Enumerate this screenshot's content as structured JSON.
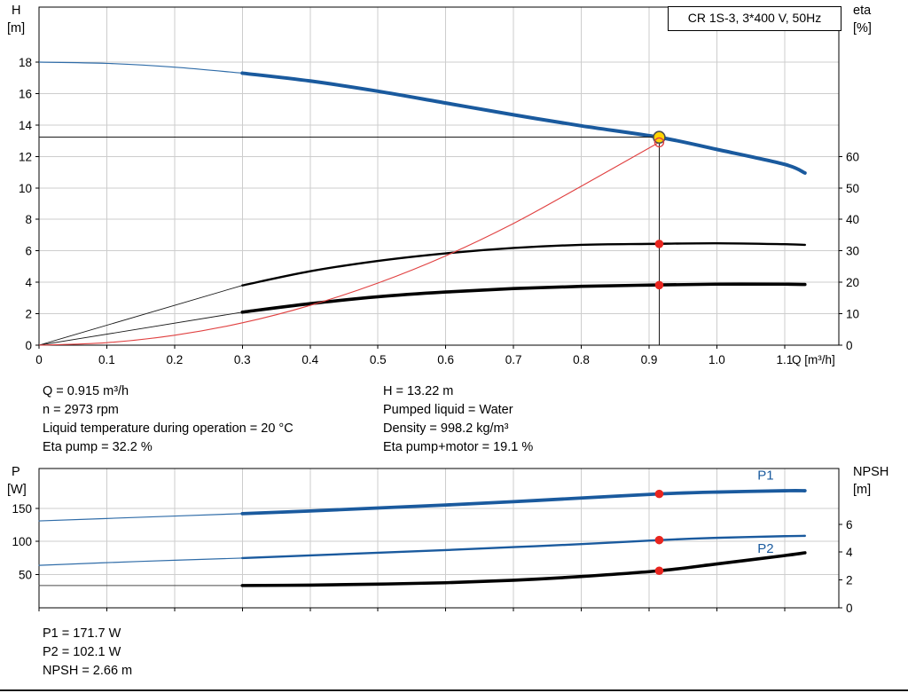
{
  "title_box": "CR 1S-3, 3*400 V, 50Hz",
  "info_top": {
    "left": [
      "Q = 0.915 m³/h",
      "n = 2973 rpm",
      "Liquid temperature during operation = 20 °C",
      "Eta pump = 32.2 %"
    ],
    "right": [
      "H = 13.22 m",
      "Pumped liquid = Water",
      "Density = 998.2 kg/m³",
      "Eta pump+motor = 19.1 %"
    ]
  },
  "info_bottom": [
    "P1 = 171.7 W",
    "P2 = 102.1 W",
    "NPSH = 2.66 m"
  ],
  "colors": {
    "curve_blue": "#1a5a9e",
    "curve_black": "#000000",
    "marker_red": "#e8251f",
    "duty_yellow": "#ffd400",
    "grid": "#cdcdcd"
  },
  "chart_data": [
    {
      "type": "line",
      "name": "qh-eta-performance",
      "x_axis": {
        "label": "Q [m³/h]",
        "min": 0,
        "max": 1.18,
        "ticks": [
          0,
          0.1,
          0.2,
          0.3,
          0.4,
          0.5,
          0.6,
          0.7,
          0.8,
          0.9,
          1.0,
          1.1
        ],
        "tick_labels": [
          "0",
          "0.1",
          "0.2",
          "0.3",
          "0.4",
          "0.5",
          "0.6",
          "0.7",
          "0.8",
          "0.9",
          "1.0",
          "1.1"
        ]
      },
      "y_left": {
        "label_lines": [
          "H",
          "[m]"
        ],
        "min": 0,
        "max": 21.5,
        "ticks": [
          0,
          2,
          4,
          6,
          8,
          10,
          12,
          14,
          16,
          18
        ]
      },
      "y_right": {
        "label_lines": [
          "eta",
          "[%]"
        ],
        "min": 0,
        "max": 107.5,
        "ticks": [
          0,
          10,
          20,
          30,
          40,
          50,
          60
        ]
      },
      "grid": true,
      "series": [
        {
          "name": "head-min-flow",
          "axis": "left",
          "color": "#2f6ca8",
          "width": 1.2,
          "points": [
            [
              0,
              18.0
            ],
            [
              0.1,
              17.92
            ],
            [
              0.2,
              17.68
            ],
            [
              0.3,
              17.3
            ]
          ]
        },
        {
          "name": "head",
          "axis": "left",
          "color": "#1a5a9e",
          "width": 4,
          "points": [
            [
              0.3,
              17.3
            ],
            [
              0.4,
              16.8
            ],
            [
              0.5,
              16.15
            ],
            [
              0.6,
              15.4
            ],
            [
              0.7,
              14.65
            ],
            [
              0.8,
              13.95
            ],
            [
              0.915,
              13.22
            ],
            [
              1.0,
              12.45
            ],
            [
              1.1,
              11.5
            ],
            [
              1.13,
              10.95
            ]
          ]
        },
        {
          "name": "eta-pump-min-flow",
          "axis": "right",
          "color": "#1a1a1a",
          "width": 0.9,
          "points": [
            [
              0,
              0
            ],
            [
              0.3,
              19.0
            ]
          ]
        },
        {
          "name": "eta-pump",
          "axis": "right",
          "color": "#000000",
          "width": 2.4,
          "points": [
            [
              0.3,
              19.0
            ],
            [
              0.4,
              23.5
            ],
            [
              0.5,
              26.8
            ],
            [
              0.6,
              29.2
            ],
            [
              0.7,
              30.9
            ],
            [
              0.8,
              31.9
            ],
            [
              0.9,
              32.2
            ],
            [
              1.0,
              32.4
            ],
            [
              1.1,
              32.1
            ],
            [
              1.13,
              31.9
            ]
          ]
        },
        {
          "name": "eta-pump-motor-min-flow",
          "axis": "right",
          "color": "#1a1a1a",
          "width": 0.9,
          "points": [
            [
              0,
              0
            ],
            [
              0.3,
              10.5
            ]
          ]
        },
        {
          "name": "eta-pump-motor",
          "axis": "right",
          "color": "#000000",
          "width": 3.6,
          "points": [
            [
              0.3,
              10.5
            ],
            [
              0.4,
              13.2
            ],
            [
              0.5,
              15.4
            ],
            [
              0.6,
              16.9
            ],
            [
              0.7,
              18.0
            ],
            [
              0.8,
              18.7
            ],
            [
              0.9,
              19.1
            ],
            [
              1.0,
              19.4
            ],
            [
              1.1,
              19.4
            ],
            [
              1.13,
              19.3
            ]
          ]
        },
        {
          "name": "system-curve",
          "axis": "left",
          "color": "#e04040",
          "width": 1.1,
          "points": [
            [
              0,
              0
            ],
            [
              0.1,
              0.16
            ],
            [
              0.2,
              0.63
            ],
            [
              0.3,
              1.42
            ],
            [
              0.4,
              2.53
            ],
            [
              0.5,
              3.95
            ],
            [
              0.6,
              5.68
            ],
            [
              0.7,
              7.74
            ],
            [
              0.8,
              10.11
            ],
            [
              0.915,
              12.9
            ]
          ]
        }
      ],
      "crosshair": {
        "q": 0.915,
        "h": 13.22
      },
      "markers": [
        {
          "name": "duty-point-marker",
          "axis": "left",
          "x": 0.915,
          "y": 13.22,
          "r": 6.5,
          "fill": "#ffd400",
          "stroke": "#4d4d4d",
          "stroke_width": 1.6,
          "interactable": true
        },
        {
          "name": "system-curve-point-marker",
          "axis": "left",
          "x": 0.915,
          "y": 12.9,
          "r": 5,
          "fill": "none",
          "stroke": "#e04040",
          "stroke_width": 1.4
        },
        {
          "name": "eta-pump-point-marker",
          "axis": "right",
          "x": 0.915,
          "y": 32.2,
          "r": 4.8,
          "fill": "#e8251f"
        },
        {
          "name": "eta-pump-motor-point-marker",
          "axis": "right",
          "x": 0.915,
          "y": 19.1,
          "r": 4.8,
          "fill": "#e8251f"
        }
      ],
      "annotations": []
    },
    {
      "type": "line",
      "name": "power-npsh",
      "x_axis": {
        "label": "",
        "min": 0,
        "max": 1.18,
        "ticks": [
          0,
          0.1,
          0.2,
          0.3,
          0.4,
          0.5,
          0.6,
          0.7,
          0.8,
          0.9,
          1.0,
          1.1
        ],
        "tick_labels": []
      },
      "y_left": {
        "label_lines": [
          "P",
          "[W]"
        ],
        "min": 0,
        "max": 210,
        "ticks": [
          50,
          100,
          150
        ]
      },
      "y_right": {
        "label_lines": [
          "NPSH",
          "[m]"
        ],
        "min": 0,
        "max": 10,
        "ticks": [
          0,
          2,
          4,
          6
        ]
      },
      "grid": true,
      "series": [
        {
          "name": "p1-min-flow",
          "axis": "left",
          "color": "#2f6ca8",
          "width": 1.2,
          "points": [
            [
              0,
              131
            ],
            [
              0.15,
              136.5
            ],
            [
              0.3,
              142
            ]
          ]
        },
        {
          "name": "p1",
          "axis": "left",
          "color": "#1a5a9e",
          "width": 3.8,
          "points": [
            [
              0.3,
              142
            ],
            [
              0.4,
              146
            ],
            [
              0.5,
              150.5
            ],
            [
              0.6,
              155
            ],
            [
              0.7,
              160
            ],
            [
              0.8,
              165.5
            ],
            [
              0.915,
              171.7
            ],
            [
              1.0,
              174.5
            ],
            [
              1.1,
              176.5
            ],
            [
              1.13,
              176.5
            ]
          ]
        },
        {
          "name": "p2-min-flow",
          "axis": "left",
          "color": "#2f6ca8",
          "width": 1.2,
          "points": [
            [
              0,
              64
            ],
            [
              0.15,
              70
            ],
            [
              0.3,
              75
            ]
          ]
        },
        {
          "name": "p2",
          "axis": "left",
          "color": "#1a5a9e",
          "width": 2.4,
          "points": [
            [
              0.3,
              75
            ],
            [
              0.4,
              79
            ],
            [
              0.5,
              83
            ],
            [
              0.6,
              87
            ],
            [
              0.7,
              91.5
            ],
            [
              0.8,
              96
            ],
            [
              0.915,
              102.1
            ],
            [
              1.0,
              105.5
            ],
            [
              1.1,
              108
            ],
            [
              1.13,
              108.5
            ]
          ]
        },
        {
          "name": "npsh-min-flow",
          "axis": "right",
          "color": "#4a4a4a",
          "width": 1,
          "points": [
            [
              0,
              1.6
            ],
            [
              0.3,
              1.6
            ]
          ]
        },
        {
          "name": "npsh",
          "axis": "right",
          "color": "#000000",
          "width": 3.6,
          "points": [
            [
              0.3,
              1.6
            ],
            [
              0.4,
              1.63
            ],
            [
              0.5,
              1.7
            ],
            [
              0.6,
              1.8
            ],
            [
              0.7,
              1.98
            ],
            [
              0.8,
              2.25
            ],
            [
              0.915,
              2.66
            ],
            [
              1.0,
              3.15
            ],
            [
              1.1,
              3.75
            ],
            [
              1.13,
              3.95
            ]
          ]
        }
      ],
      "markers": [
        {
          "name": "p1-point-marker",
          "axis": "left",
          "x": 0.915,
          "y": 171.7,
          "r": 4.8,
          "fill": "#e8251f"
        },
        {
          "name": "p2-point-marker",
          "axis": "left",
          "x": 0.915,
          "y": 102.1,
          "r": 4.8,
          "fill": "#e8251f"
        },
        {
          "name": "npsh-point-marker",
          "axis": "right",
          "x": 0.915,
          "y": 2.66,
          "r": 4.8,
          "fill": "#e8251f"
        }
      ],
      "annotations": [
        {
          "name": "p1-curve-label",
          "text": "P1",
          "axis": "left",
          "x": 1.06,
          "y": 193,
          "color": "#1a5a9e"
        },
        {
          "name": "p2-curve-label",
          "text": "P2",
          "axis": "left",
          "x": 1.06,
          "y": 83,
          "color": "#1a5a9e"
        }
      ]
    }
  ]
}
